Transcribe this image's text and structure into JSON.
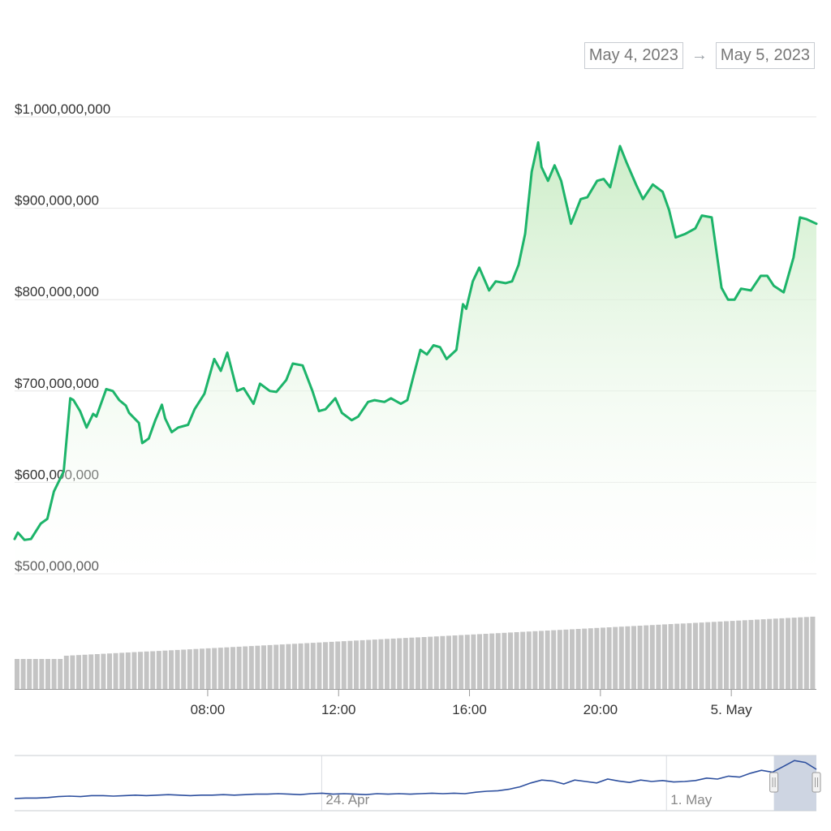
{
  "range_selector": {
    "from": "May 4, 2023",
    "arrow": "→",
    "to": "May 5, 2023"
  },
  "colors": {
    "line": "#1db46a",
    "area_top": "#c9ecc4",
    "volume": "#c4c4c4",
    "navigator_line": "#2d4f9e",
    "navigator_mask": "#c5cedd"
  },
  "chart_data": {
    "type": "line",
    "title": "",
    "ylabel": "",
    "xlabel": "",
    "ylim": [
      500000000,
      1000000000
    ],
    "y_ticks": [
      {
        "value": 1000000000,
        "label": "$1,000,000,000"
      },
      {
        "value": 900000000,
        "label": "$900,000,000"
      },
      {
        "value": 800000000,
        "label": "$800,000,000"
      },
      {
        "value": 700000000,
        "label": "$700,000,000"
      },
      {
        "value": 600000000,
        "label": "$600,000,000"
      },
      {
        "value": 500000000,
        "label": "$500,000,000"
      }
    ],
    "x_ticks": [
      {
        "hour": 8,
        "label": "08:00"
      },
      {
        "hour": 12,
        "label": "12:00"
      },
      {
        "hour": 16,
        "label": "16:00"
      },
      {
        "hour": 20,
        "label": "20:00"
      },
      {
        "hour": 24,
        "label": "5. May"
      }
    ],
    "x_range_hours": [
      2.1,
      26.6
    ],
    "series": [
      {
        "x": [
          2.1,
          2.2,
          2.4,
          2.6,
          2.9,
          3.1,
          3.3,
          3.6,
          3.8,
          3.9,
          4.1,
          4.3,
          4.5,
          4.6,
          4.9,
          5.1,
          5.3,
          5.5,
          5.6,
          5.9,
          6.0,
          6.2,
          6.4,
          6.6,
          6.7,
          6.9,
          7.1,
          7.4,
          7.6,
          7.9,
          8.2,
          8.4,
          8.6,
          8.9,
          9.1,
          9.4,
          9.6,
          9.9,
          10.1,
          10.4,
          10.6,
          10.9,
          11.2,
          11.4,
          11.6,
          11.9,
          12.1,
          12.4,
          12.6,
          12.9,
          13.1,
          13.4,
          13.6,
          13.9,
          14.1,
          14.3,
          14.5,
          14.7,
          14.9,
          15.1,
          15.3,
          15.6,
          15.8,
          15.9,
          16.1,
          16.3,
          16.6,
          16.8,
          17.1,
          17.3,
          17.5,
          17.7,
          17.9,
          18.1,
          18.2,
          18.4,
          18.6,
          18.8,
          19.1,
          19.4,
          19.6,
          19.9,
          20.1,
          20.3,
          20.6,
          20.8,
          21.1,
          21.3,
          21.6,
          21.9,
          22.1,
          22.3,
          22.6,
          22.9,
          23.1,
          23.4,
          23.7,
          23.9,
          24.1,
          24.3,
          24.6,
          24.9,
          25.1,
          25.3,
          25.6,
          25.9,
          26.1,
          26.3,
          26.6
        ],
        "values": [
          538000000,
          545000000,
          537000000,
          538000000,
          555000000,
          560000000,
          590000000,
          612000000,
          692000000,
          690000000,
          678000000,
          660000000,
          675000000,
          672000000,
          702000000,
          700000000,
          690000000,
          684000000,
          676000000,
          665000000,
          643000000,
          648000000,
          668000000,
          685000000,
          670000000,
          655000000,
          660000000,
          663000000,
          680000000,
          697000000,
          735000000,
          722000000,
          742000000,
          700000000,
          703000000,
          686000000,
          708000000,
          700000000,
          699000000,
          712000000,
          730000000,
          728000000,
          700000000,
          678000000,
          680000000,
          692000000,
          676000000,
          668000000,
          672000000,
          688000000,
          690000000,
          688000000,
          692000000,
          686000000,
          690000000,
          718000000,
          745000000,
          740000000,
          750000000,
          748000000,
          735000000,
          745000000,
          795000000,
          790000000,
          820000000,
          835000000,
          810000000,
          820000000,
          818000000,
          820000000,
          838000000,
          872000000,
          940000000,
          972000000,
          945000000,
          930000000,
          947000000,
          930000000,
          883000000,
          910000000,
          912000000,
          930000000,
          932000000,
          923000000,
          968000000,
          950000000,
          925000000,
          910000000,
          926000000,
          918000000,
          898000000,
          868000000,
          872000000,
          878000000,
          892000000,
          890000000,
          813000000,
          800000000,
          800000000,
          812000000,
          810000000,
          826000000,
          826000000,
          815000000,
          808000000,
          846000000,
          890000000,
          888000000,
          883000000
        ]
      }
    ],
    "volume_bars": {
      "count": 130,
      "start_fraction": 0.28,
      "end_fraction": 0.66
    },
    "navigator": {
      "labels": [
        {
          "position": 0.383,
          "label": "24. Apr"
        },
        {
          "position": 0.813,
          "label": "1. May"
        }
      ],
      "values": [
        0.2,
        0.21,
        0.21,
        0.22,
        0.24,
        0.25,
        0.24,
        0.26,
        0.26,
        0.25,
        0.26,
        0.27,
        0.26,
        0.27,
        0.28,
        0.27,
        0.26,
        0.27,
        0.27,
        0.28,
        0.27,
        0.28,
        0.29,
        0.29,
        0.3,
        0.29,
        0.28,
        0.3,
        0.31,
        0.29,
        0.3,
        0.29,
        0.28,
        0.3,
        0.29,
        0.3,
        0.29,
        0.3,
        0.31,
        0.3,
        0.31,
        0.3,
        0.33,
        0.35,
        0.36,
        0.39,
        0.44,
        0.52,
        0.58,
        0.56,
        0.5,
        0.58,
        0.55,
        0.52,
        0.6,
        0.56,
        0.53,
        0.58,
        0.55,
        0.57,
        0.54,
        0.55,
        0.57,
        0.62,
        0.6,
        0.66,
        0.64,
        0.72,
        0.78,
        0.74,
        0.86,
        0.98,
        0.94,
        0.8
      ],
      "selection_start_fraction": 0.947
    }
  }
}
